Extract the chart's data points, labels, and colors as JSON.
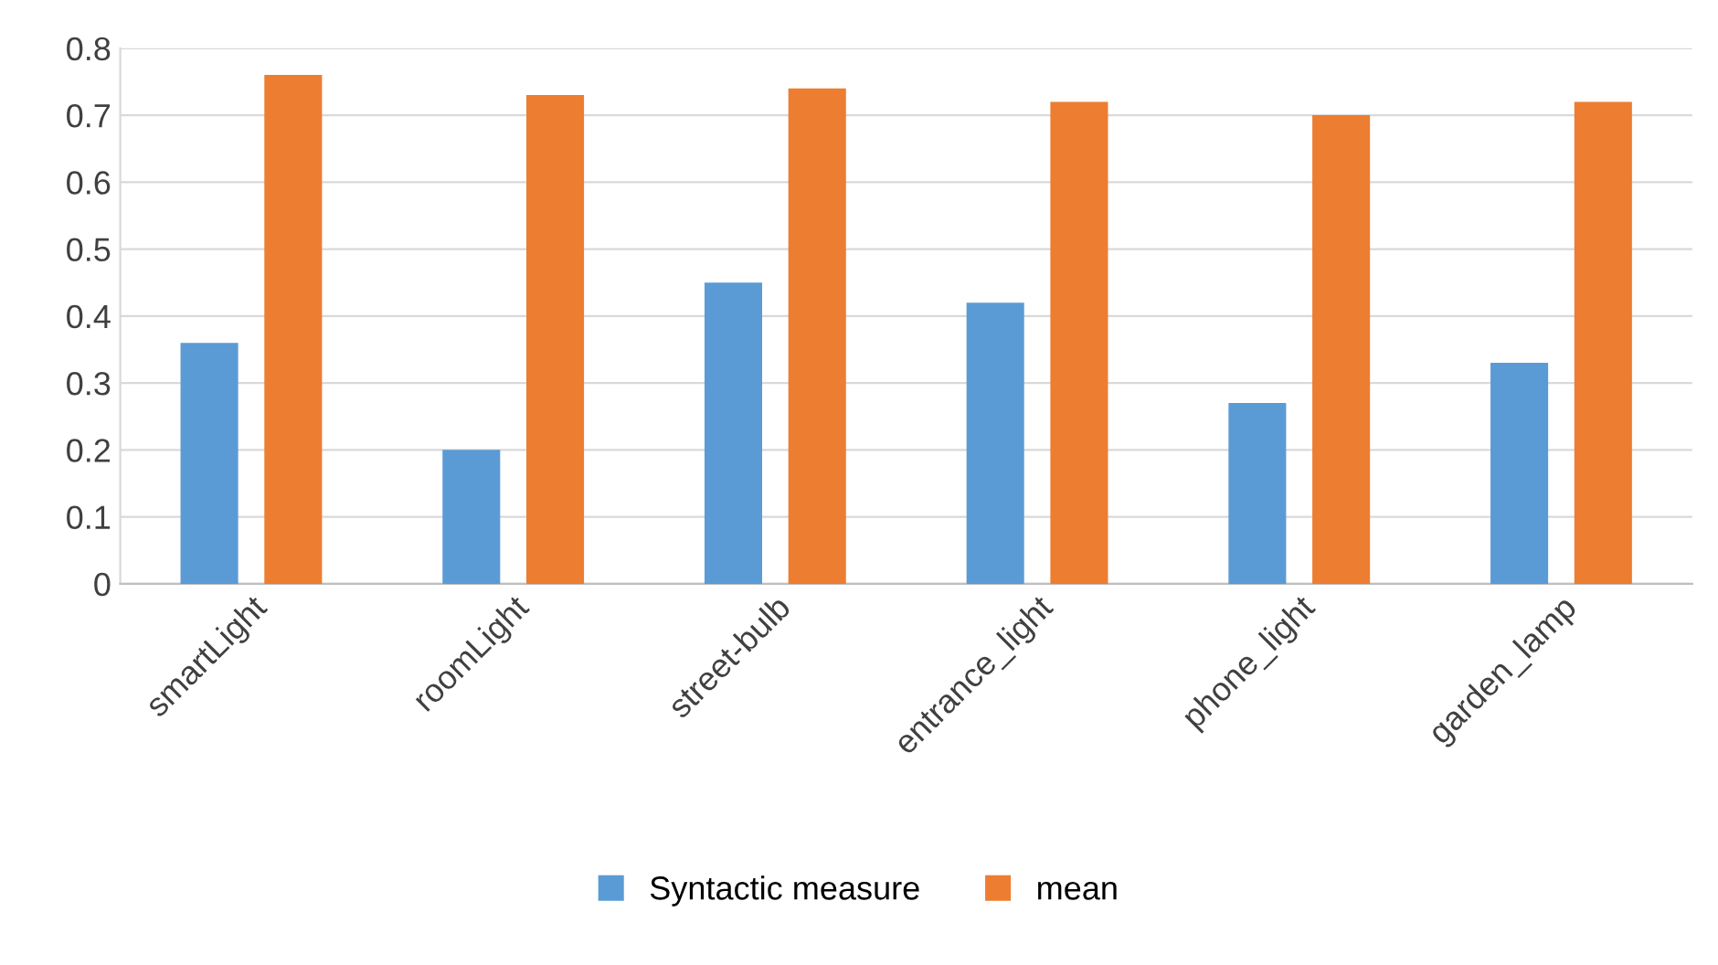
{
  "chart_data": {
    "type": "bar",
    "categories": [
      "smartLight",
      "roomLight",
      "street-bulb",
      "entrance_light",
      "phone_light",
      "garden_lamp"
    ],
    "series": [
      {
        "name": "Syntactic measure",
        "color": "#5b9bd5",
        "values": [
          0.36,
          0.2,
          0.45,
          0.42,
          0.27,
          0.33
        ]
      },
      {
        "name": "mean",
        "color": "#ed7d31",
        "values": [
          0.76,
          0.73,
          0.74,
          0.72,
          0.7,
          0.72
        ]
      }
    ],
    "ylim": [
      0,
      0.8
    ],
    "yticks": [
      0,
      0.1,
      0.2,
      0.3,
      0.4,
      0.5,
      0.6,
      0.7,
      0.8
    ],
    "grid": "y",
    "legend": "bottom"
  }
}
